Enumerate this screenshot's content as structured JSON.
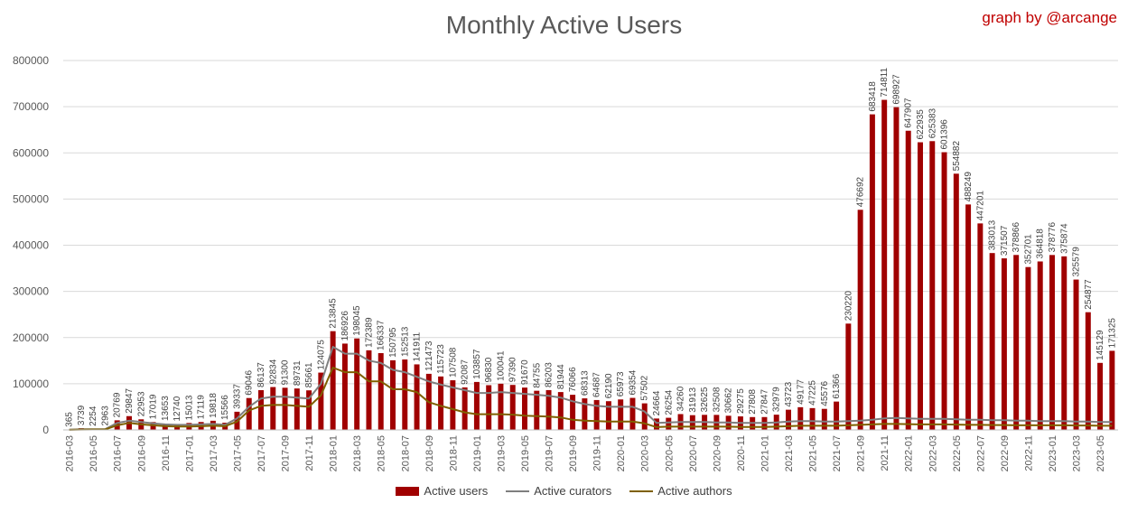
{
  "chart_data": {
    "type": "bar",
    "title": "Monthly Active Users",
    "credit": "graph by @arcange",
    "ylim": [
      0,
      800000
    ],
    "yticks": [
      0,
      100000,
      200000,
      300000,
      400000,
      500000,
      600000,
      700000,
      800000
    ],
    "grid": true,
    "legend_position": "bottom",
    "categories": [
      "2016-03",
      "2016-04",
      "2016-05",
      "2016-06",
      "2016-07",
      "2016-08",
      "2016-09",
      "2016-10",
      "2016-11",
      "2016-12",
      "2017-01",
      "2017-02",
      "2017-03",
      "2017-04",
      "2017-05",
      "2017-06",
      "2017-07",
      "2017-08",
      "2017-09",
      "2017-10",
      "2017-11",
      "2017-12",
      "2018-01",
      "2018-02",
      "2018-03",
      "2018-04",
      "2018-05",
      "2018-06",
      "2018-07",
      "2018-08",
      "2018-09",
      "2018-10",
      "2018-11",
      "2018-12",
      "2019-01",
      "2019-02",
      "2019-03",
      "2019-04",
      "2019-05",
      "2019-06",
      "2019-07",
      "2019-08",
      "2019-09",
      "2019-10",
      "2019-11",
      "2019-12",
      "2020-01",
      "2020-02",
      "2020-03",
      "2020-04",
      "2020-05",
      "2020-06",
      "2020-07",
      "2020-08",
      "2020-09",
      "2020-10",
      "2020-11",
      "2020-12",
      "2021-01",
      "2021-02",
      "2021-03",
      "2021-04",
      "2021-05",
      "2021-06",
      "2021-07",
      "2021-08",
      "2021-09",
      "2021-10",
      "2021-11",
      "2021-12",
      "2022-01",
      "2022-02",
      "2022-03",
      "2022-04",
      "2022-05",
      "2022-06",
      "2022-07",
      "2022-08",
      "2022-09",
      "2022-10",
      "2022-11",
      "2022-12",
      "2023-01",
      "2023-02",
      "2023-03",
      "2023-04",
      "2023-05",
      "2023-06"
    ],
    "series": [
      {
        "name": "Active users",
        "color": "#a00000",
        "values": [
          365,
          3739,
          2254,
          2963,
          20769,
          29847,
          22953,
          17019,
          13653,
          12740,
          15013,
          17119,
          19818,
          15566,
          39337,
          69046,
          86137,
          92834,
          91300,
          89731,
          85661,
          124075,
          213845,
          186926,
          198045,
          172389,
          166337,
          150795,
          152513,
          141911,
          121473,
          115723,
          107508,
          92087,
          103857,
          96830,
          100041,
          97390,
          91670,
          84755,
          86203,
          81944,
          76066,
          68313,
          64687,
          62190,
          65973,
          69354,
          57502,
          24664,
          26254,
          34260,
          31913,
          32625,
          32508,
          30662,
          29275,
          27808,
          27847,
          32979,
          43723,
          49177,
          47225,
          45576,
          61366,
          230220,
          476692,
          683418,
          714811,
          698927,
          647907,
          622935,
          625383,
          601396,
          554882,
          488249,
          447201,
          383013,
          371507,
          378866,
          352701,
          364818,
          378776,
          375874,
          325579,
          254877,
          145129,
          171325
        ]
      },
      {
        "name": "Active curators",
        "color": "#7f7f7f",
        "values": [
          300,
          1500,
          1500,
          1800,
          15000,
          20000,
          17000,
          14000,
          12000,
          11000,
          11000,
          12000,
          13000,
          11000,
          25000,
          50000,
          68000,
          72000,
          72000,
          70000,
          68000,
          100000,
          180000,
          165000,
          165000,
          150000,
          145000,
          130000,
          125000,
          115000,
          105000,
          98000,
          92000,
          86000,
          80000,
          80000,
          82000,
          80000,
          78000,
          76000,
          74000,
          70000,
          62000,
          56000,
          52000,
          50000,
          50000,
          50000,
          40000,
          15000,
          16000,
          17000,
          17000,
          17000,
          16000,
          16000,
          15000,
          15000,
          15000,
          16000,
          18000,
          19000,
          19000,
          18000,
          18000,
          19000,
          20000,
          22000,
          25000,
          26000,
          25000,
          24000,
          24000,
          24000,
          23000,
          22000,
          22000,
          21000,
          21000,
          20000,
          20000,
          19000,
          19000,
          19000,
          18000,
          18000,
          17000,
          17000
        ]
      },
      {
        "name": "Active authors",
        "color": "#7f6000",
        "values": [
          200,
          800,
          900,
          1000,
          10000,
          15000,
          12000,
          10000,
          8000,
          7500,
          7500,
          8000,
          9000,
          8000,
          18000,
          42000,
          52000,
          54000,
          54000,
          52000,
          50000,
          75000,
          135000,
          125000,
          125000,
          105000,
          105000,
          88000,
          88000,
          82000,
          60000,
          52000,
          45000,
          38000,
          34000,
          34000,
          34000,
          33000,
          31000,
          30000,
          29000,
          27000,
          22000,
          20000,
          19000,
          18000,
          18000,
          18000,
          14000,
          6000,
          7000,
          7000,
          7000,
          7000,
          7000,
          7000,
          6500,
          6500,
          6500,
          7000,
          8000,
          9000,
          9000,
          9000,
          9000,
          10000,
          11000,
          12000,
          13000,
          13000,
          12500,
          12000,
          12000,
          12000,
          11500,
          11000,
          11000,
          10500,
          10500,
          10000,
          10000,
          10000,
          10000,
          10000,
          9500,
          9500,
          9000,
          9000
        ]
      }
    ]
  }
}
